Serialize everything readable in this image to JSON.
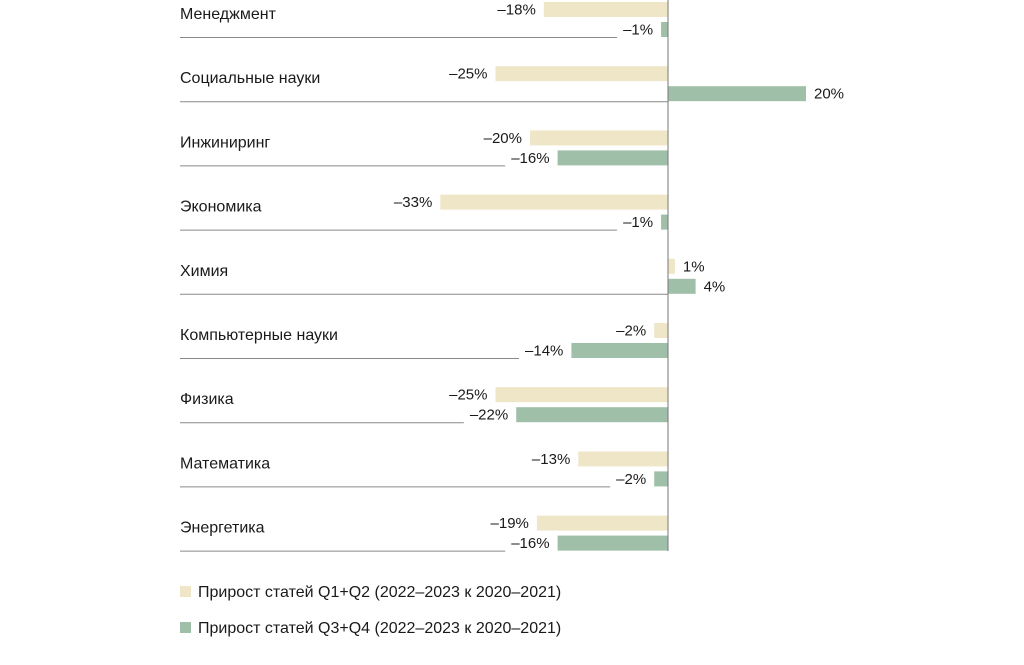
{
  "chart_data": {
    "type": "bar",
    "orientation": "horizontal",
    "categories": [
      "Менеджмент",
      "Социальные науки",
      "Инжиниринг",
      "Экономика",
      "Химия",
      "Компьютерные науки",
      "Физика",
      "Математика",
      "Энергетика"
    ],
    "series": [
      {
        "name": "Прирост статей Q1+Q2 (2022–2023 к 2020–2021)",
        "values": [
          -18,
          -25,
          -20,
          -33,
          1,
          -2,
          -25,
          -13,
          -19
        ],
        "labels": [
          "–18%",
          "–25%",
          "–20%",
          "–33%",
          "1%",
          "–2%",
          "–25%",
          "–13%",
          "–19%"
        ],
        "color": "#efe6c8"
      },
      {
        "name": "Прирост статей Q3+Q4 (2022–2023 к 2020–2021)",
        "values": [
          -1,
          20,
          -16,
          -1,
          4,
          -14,
          -22,
          -2,
          -16
        ],
        "labels": [
          "–1%",
          "20%",
          "–16%",
          "–1%",
          "4%",
          "–14%",
          "–22%",
          "–2%",
          "–16%"
        ],
        "color": "#9fbfa8"
      }
    ],
    "unit": "%",
    "legend_position": "bottom-left",
    "grid": false
  }
}
